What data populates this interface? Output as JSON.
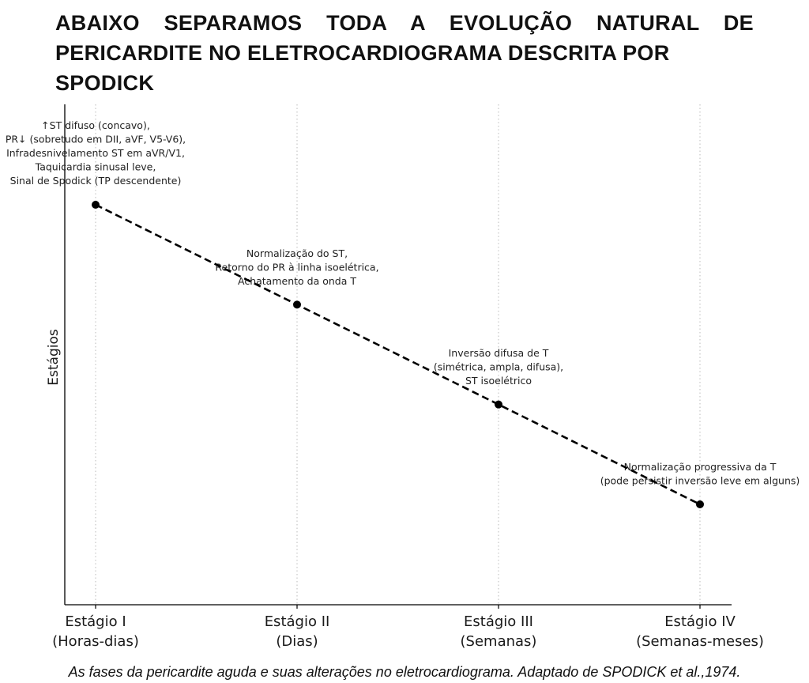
{
  "heading": {
    "line1": "ABAIXO SEPARAMOS TODA A EVOLUÇÃO NATURAL DE",
    "line2": "PERICARDITE NO ELETROCARDIOGRAMA DESCRITA POR SPODICK"
  },
  "chart_data": {
    "type": "line",
    "title": "",
    "xlabel": "",
    "ylabel": "Estágios",
    "ylim": [
      0,
      5
    ],
    "grid": "vertical dotted",
    "line_style": "dashed",
    "colors": {
      "line": "#000000",
      "marker": "#000000",
      "grid": "#bbbbbb",
      "axis": "#000000"
    },
    "categories": [
      [
        "Estágio I",
        "(Horas-dias)"
      ],
      [
        "Estágio II",
        "(Dias)"
      ],
      [
        "Estágio III",
        "(Semanas)"
      ],
      [
        "Estágio IV",
        "(Semanas-meses)"
      ]
    ],
    "values": [
      4,
      3,
      2,
      1
    ],
    "annotations": [
      [
        "↑ST difuso (concavo),",
        "PR↓ (sobretudo em DII, aVF, V5-V6),",
        "Infradesnivelamento ST em aVR/V1,",
        "Taquicardia sinusal leve,",
        "Sinal de Spodick (TP descendente)"
      ],
      [
        "Normalização do ST,",
        "Retorno do PR à linha isoelétrica,",
        "Achatamento da onda T"
      ],
      [
        "Inversão difusa de T",
        "(simétrica, ampla, difusa),",
        "ST isoelétrico"
      ],
      [
        "Normalização progressiva da T",
        "(pode persistir inversão leve em alguns)"
      ]
    ]
  },
  "caption": "As fases da pericardite aguda e suas alterações no eletrocardiograma. Adaptado de SPODICK et al.,1974."
}
